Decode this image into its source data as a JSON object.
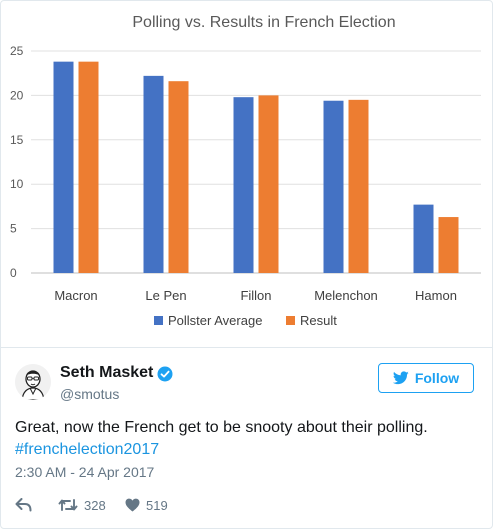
{
  "chart_data": {
    "type": "bar",
    "title": "Polling vs. Results in French Election",
    "categories": [
      "Macron",
      "Le Pen",
      "Fillon",
      "Melenchon",
      "Hamon"
    ],
    "series": [
      {
        "name": "Pollster Average",
        "values": [
          23.8,
          22.2,
          19.8,
          19.4,
          7.7
        ],
        "color": "#4472c4"
      },
      {
        "name": "Result",
        "values": [
          23.8,
          21.6,
          20.0,
          19.5,
          6.3
        ],
        "color": "#ed7d31"
      }
    ],
    "yticks": [
      "0",
      "5",
      "10",
      "15",
      "20",
      "25"
    ],
    "ylim": [
      0,
      25
    ],
    "grid": true,
    "legend_position": "bottom"
  },
  "tweet": {
    "author_name": "Seth Masket",
    "author_handle": "@smotus",
    "verified": true,
    "follow_label": "Follow",
    "text": "Great, now the French get to be snooty about their polling.",
    "hashtag": "#frenchelection2017",
    "timestamp": "2:30 AM - 24 Apr 2017",
    "retweet_count": "328",
    "like_count": "519"
  },
  "colors": {
    "twitter_blue": "#1da1f2",
    "hashtag_blue": "#1b95e0",
    "meta_gray": "#657786"
  },
  "icons": {
    "reply": "reply-icon",
    "retweet": "retweet-icon",
    "like": "heart-icon",
    "follow": "twitter-bird-icon",
    "verified": "verified-badge-icon"
  }
}
